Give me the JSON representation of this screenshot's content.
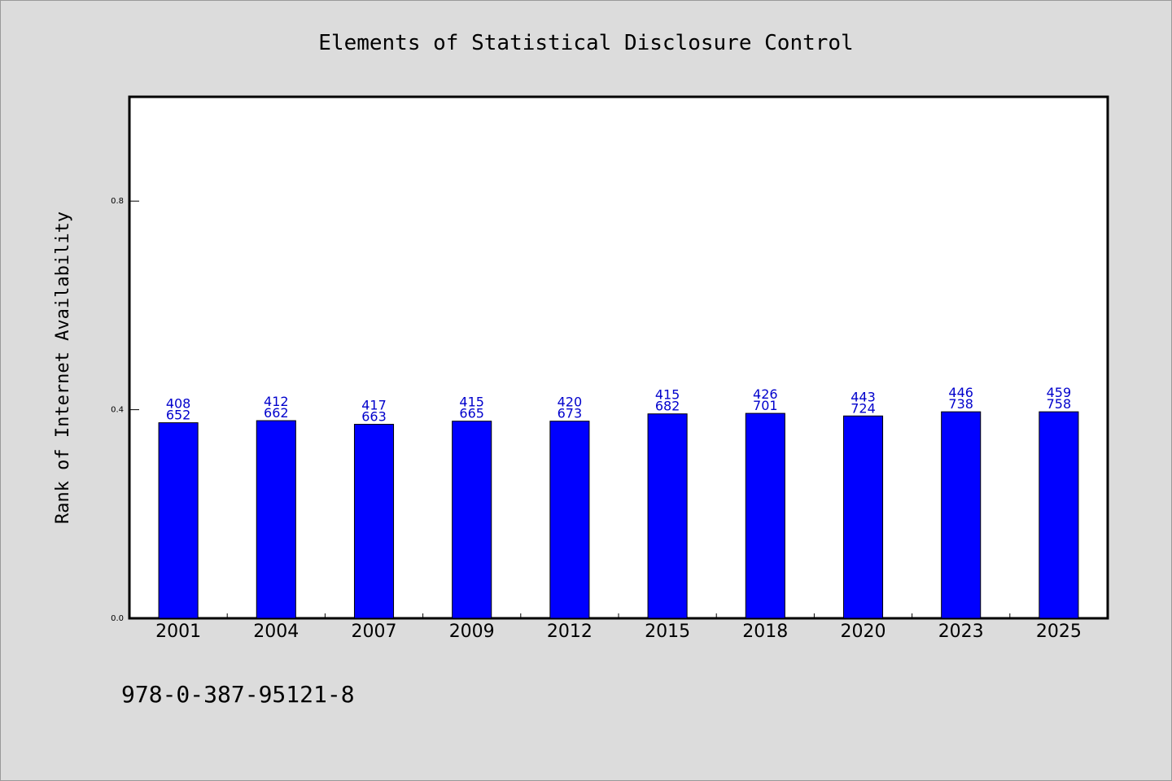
{
  "chart_data": {
    "type": "bar",
    "title": "Elements of Statistical Disclosure Control",
    "xlabel": "",
    "ylabel": "Rank of Internet Availability",
    "categories": [
      "2001",
      "2004",
      "2007",
      "2009",
      "2012",
      "2015",
      "2018",
      "2020",
      "2023",
      "2025"
    ],
    "series": [
      {
        "values": [
          0.375,
          0.379,
          0.372,
          0.378,
          0.378,
          0.392,
          0.393,
          0.388,
          0.396,
          0.396
        ],
        "color": "#0000ff",
        "data_labels": [
          [
            "408",
            "652"
          ],
          [
            "412",
            "662"
          ],
          [
            "417",
            "663"
          ],
          [
            "415",
            "665"
          ],
          [
            "420",
            "673"
          ],
          [
            "415",
            "682"
          ],
          [
            "426",
            "701"
          ],
          [
            "443",
            "724"
          ],
          [
            "446",
            "738"
          ],
          [
            "459",
            "758"
          ]
        ]
      }
    ],
    "ylim": [
      0,
      1.0
    ],
    "yticks": [
      0.0,
      0.4,
      0.8
    ],
    "ytick_labels": [
      "0.0",
      "0.4",
      "0.8"
    ],
    "grid": false,
    "legend": "none"
  },
  "footer": {
    "isbn": "978-0-387-95121-8"
  },
  "colors": {
    "bar": "#0000ff",
    "data_label": "#0000cc",
    "background": "#dcdcdc",
    "plot_background": "#ffffff"
  }
}
